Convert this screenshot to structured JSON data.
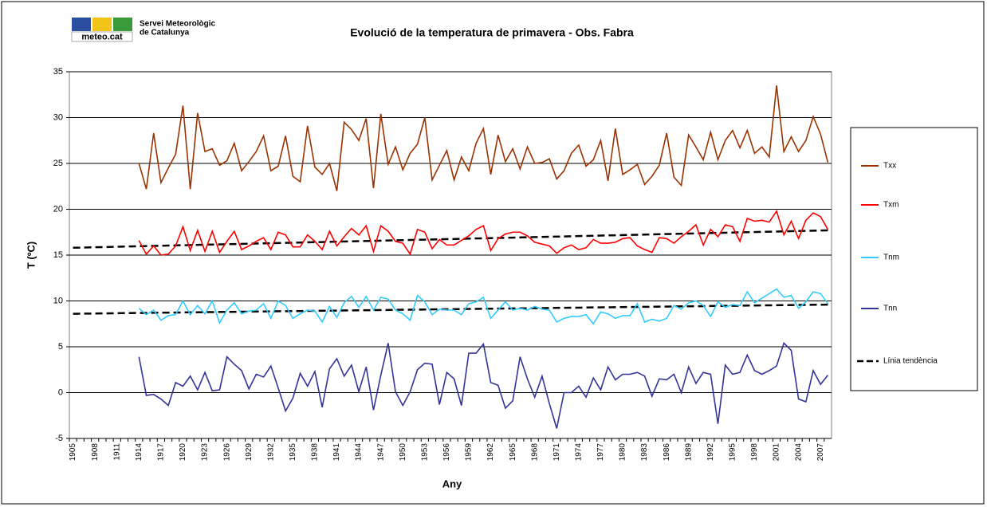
{
  "logo_text": "meteo.cat",
  "organization": [
    "Servei Meteorològic",
    "de Catalunya"
  ],
  "chart_data": {
    "type": "line",
    "title": "Evolució de la temperatura de primavera - Obs. Fabra",
    "x_label": "Any",
    "y_label": "T (ºC)",
    "categories": [
      "1905",
      null,
      null,
      "1908",
      null,
      null,
      "1911",
      null,
      null,
      "1914",
      null,
      null,
      "1917",
      null,
      null,
      "1920",
      null,
      null,
      "1923",
      null,
      null,
      "1926",
      null,
      null,
      "1929",
      null,
      null,
      "1932",
      null,
      null,
      "1935",
      null,
      null,
      "1938",
      null,
      null,
      "1941",
      null,
      null,
      "1944",
      null,
      null,
      "1947",
      null,
      null,
      "1950",
      null,
      null,
      "1953",
      null,
      null,
      "1956",
      null,
      null,
      "1959",
      null,
      null,
      "1962",
      null,
      null,
      "1965",
      null,
      null,
      "1968",
      null,
      null,
      "1971",
      null,
      null,
      "1974",
      null,
      null,
      "1977",
      null,
      null,
      "1980",
      null,
      null,
      "1983",
      null,
      null,
      "1986",
      null,
      null,
      "1989",
      null,
      null,
      "1992",
      null,
      null,
      "1995",
      null,
      null,
      "1998",
      null,
      null,
      "2001",
      null,
      null,
      "2004",
      null,
      null,
      "2007",
      null
    ],
    "series": [
      {
        "name": "Txx",
        "color": "#993300",
        "values": [
          null,
          null,
          null,
          null,
          null,
          null,
          null,
          null,
          null,
          25,
          22.2,
          28.3,
          22.9,
          24.5,
          26,
          31.3,
          22.2,
          30.5,
          26.3,
          26.6,
          24.8,
          25.3,
          27.2,
          24.2,
          25.2,
          26.3,
          28,
          24.2,
          24.7,
          28,
          23.6,
          23,
          29.1,
          24.6,
          23.8,
          25,
          22,
          29.5,
          28.7,
          27.5,
          29.9,
          22.3,
          30.4,
          24.9,
          26.8,
          24.3,
          26.1,
          27.1,
          30,
          23.2,
          24.8,
          26.4,
          23.2,
          25.7,
          24.2,
          27.2,
          28.8,
          23.8,
          28.1,
          25.2,
          26.6,
          24.4,
          26.8,
          25,
          25.1,
          25.5,
          23.3,
          24.2,
          26.1,
          27,
          24.7,
          25.4,
          27.5,
          23.1,
          28.8,
          23.8,
          24.3,
          24.9,
          22.7,
          23.6,
          24.8,
          28.3,
          23.5,
          22.6,
          28.1,
          26.8,
          25.4,
          28.4,
          25.4,
          27.5,
          28.6,
          26.7,
          28.6,
          26.1,
          26.8,
          25.7,
          33.5,
          26.3,
          27.9,
          26.3,
          27.5,
          30.1,
          28.2,
          25.1
        ]
      },
      {
        "name": "Txm",
        "color": "#ff0000",
        "values": [
          null,
          null,
          null,
          null,
          null,
          null,
          null,
          null,
          null,
          16.6,
          15.1,
          16,
          15,
          15.1,
          16,
          18.1,
          15.5,
          17.7,
          15.4,
          17.6,
          15.3,
          16.5,
          17.6,
          15.6,
          16,
          16.5,
          16.9,
          15.6,
          17.5,
          17.2,
          15.9,
          15.9,
          17.2,
          16.5,
          15.6,
          17.6,
          16,
          17,
          17.9,
          17.2,
          18.2,
          15.4,
          18.2,
          17.6,
          16.5,
          16.3,
          15.1,
          17.8,
          17.5,
          15.7,
          16.7,
          16.1,
          16.1,
          16.6,
          17.1,
          17.8,
          18.2,
          15.5,
          16.8,
          17.3,
          17.5,
          17.5,
          17.1,
          16.4,
          16.2,
          16,
          15.2,
          15.8,
          16.1,
          15.6,
          15.8,
          16.7,
          16.3,
          16.3,
          16.4,
          16.8,
          16.9,
          16,
          15.6,
          15.3,
          16.9,
          16.8,
          16.3,
          17,
          17.6,
          18.3,
          16.1,
          17.8,
          17,
          18.3,
          18.1,
          16.5,
          19,
          18.7,
          18.8,
          18.6,
          19.8,
          17.2,
          18.7,
          16.8,
          18.8,
          19.6,
          19.2,
          17.8
        ]
      },
      {
        "name": "Tnm",
        "color": "#33ccff",
        "values": [
          null,
          null,
          null,
          null,
          null,
          null,
          null,
          null,
          null,
          9.2,
          8.5,
          9,
          7.9,
          8.4,
          8.5,
          10,
          8.5,
          9.5,
          8.6,
          10,
          7.6,
          9,
          9.8,
          8.6,
          8.9,
          9,
          9.7,
          8.1,
          10,
          9.5,
          8.1,
          8.6,
          9,
          8.9,
          7.7,
          9.4,
          8.2,
          9.8,
          10.5,
          9.3,
          10.5,
          9,
          10.4,
          10.2,
          9,
          8.6,
          7.9,
          10.6,
          9.9,
          8.5,
          9.1,
          9,
          9,
          8.5,
          9.7,
          9.9,
          10.4,
          8.1,
          9,
          9.9,
          9,
          9.2,
          9,
          9.4,
          9.1,
          9,
          7.7,
          8.1,
          8.3,
          8.3,
          8.5,
          7.5,
          8.8,
          8.6,
          8.1,
          8.4,
          8.4,
          9.7,
          7.7,
          8,
          7.8,
          8.1,
          9.5,
          9.1,
          9.8,
          10,
          9.5,
          8.3,
          9.9,
          9.3,
          9.6,
          9.5,
          11,
          9.8,
          10.3,
          10.8,
          11.3,
          10.4,
          10.6,
          9.2,
          9.9,
          11,
          10.8,
          9.7
        ]
      },
      {
        "name": "Tnn",
        "color": "#333399",
        "values": [
          null,
          null,
          null,
          null,
          null,
          null,
          null,
          null,
          null,
          3.9,
          -0.3,
          -0.2,
          -0.7,
          -1.4,
          1.1,
          0.7,
          1.8,
          0.3,
          2.2,
          0.2,
          0.3,
          3.9,
          3.1,
          2.4,
          0.4,
          2,
          1.7,
          2.9,
          0.5,
          -2,
          -0.6,
          2.1,
          0.7,
          2.3,
          -1.6,
          2.6,
          3.7,
          1.8,
          3,
          0.1,
          2.8,
          -1.9,
          1.9,
          5.4,
          0.1,
          -1.4,
          0.1,
          2.5,
          3.2,
          3.1,
          -1.3,
          2.2,
          1.5,
          -1.4,
          4.3,
          4.3,
          5.3,
          1.1,
          0.8,
          -1.7,
          -0.9,
          3.9,
          1.5,
          -0.5,
          1.8,
          -1.2,
          -3.9,
          0,
          0,
          0.7,
          -0.5,
          1.6,
          0.3,
          2.8,
          1.4,
          2,
          2,
          2.2,
          1.8,
          -0.4,
          1.5,
          1.4,
          2,
          0,
          2.8,
          1,
          2.2,
          2,
          -3.4,
          3,
          2,
          2.2,
          4.1,
          2.4,
          2,
          2.4,
          2.9,
          5.4,
          4.6,
          -0.7,
          -1,
          2.4,
          0.9,
          1.9
        ]
      }
    ],
    "trend": {
      "name": "Línia tendència",
      "color": "#000000",
      "lines": [
        [
          15.8,
          17.7
        ],
        [
          8.6,
          9.6
        ]
      ]
    },
    "ylim": [
      -5,
      35
    ],
    "yticks": [
      -5,
      0,
      5,
      10,
      15,
      20,
      25,
      30,
      35
    ],
    "grid": true,
    "legend": "right"
  }
}
